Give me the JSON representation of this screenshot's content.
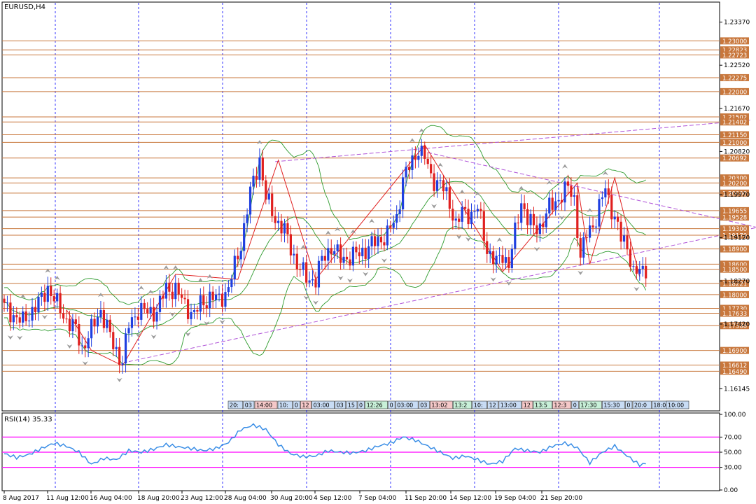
{
  "chart_title": "EURUSD,H4",
  "rsi_label": "RSI(14) 35.33",
  "colors": {
    "level_line": "#c8773c",
    "level_label_bg": "#c8773c",
    "bull_candle": "#1f3fe0",
    "bear_candle": "#e01f1f",
    "bollinger": "#2e9b2e",
    "trendline": "#b054d8",
    "zigzag": "#e02020",
    "rsi_line": "#3a8ee6",
    "rsi_levels": "#ff00ff",
    "grid": "#0000ff"
  },
  "price_ticks": [
    "1.23370",
    "1.22520",
    "1.21670",
    "1.20820",
    "1.19970",
    "1.19120",
    "1.18270",
    "1.17420",
    "1.16145"
  ],
  "level_labels": [
    "1.23000",
    "1.22823",
    "1.22723",
    "1.22275",
    "1.22000",
    "1.21502",
    "1.21402",
    "1.21150",
    "1.21000",
    "1.20692",
    "1.20300",
    "1.20200",
    "1.20000",
    "1.19655",
    "1.19528",
    "1.19300",
    "1.19170",
    "1.18900",
    "1.18600",
    "1.18500",
    "1.18221",
    "1.18000",
    "1.17730",
    "1.17633",
    "1.17388",
    "1.16900",
    "1.16612",
    "1.16490"
  ],
  "rsi_ticks": [
    "100.00",
    "70.00",
    "50.00",
    "30.00",
    "0.00"
  ],
  "time_labels": [
    "8 Aug 2017",
    "11 Aug 12:00",
    "16 Aug 04:00",
    "18 Aug 20:00",
    "23 Aug 12:00",
    "28 Aug 04:00",
    "30 Aug 20:00",
    "4 Sep 12:00",
    "7 Sep 04:00",
    "11 Sep 20:00",
    "14 Sep 12:00",
    "19 Sep 04:00",
    "21 Sep 20:00"
  ],
  "session_boxes": [
    {
      "label": "20:",
      "tone": "blue"
    },
    {
      "label": "03",
      "tone": "blue"
    },
    {
      "label": "14:00",
      "tone": "red"
    },
    {
      "label": "10:",
      "tone": "blue"
    },
    {
      "label": "0",
      "tone": "blue"
    },
    {
      "label": "12",
      "tone": "red"
    },
    {
      "label": "03:00",
      "tone": "blue"
    },
    {
      "label": "03",
      "tone": "blue"
    },
    {
      "label": "15",
      "tone": "blue"
    },
    {
      "label": "0",
      "tone": "blue"
    },
    {
      "label": "12:26",
      "tone": "green"
    },
    {
      "label": "0",
      "tone": "blue"
    },
    {
      "label": "03:00",
      "tone": "blue"
    },
    {
      "label": "03",
      "tone": "blue"
    },
    {
      "label": "13:02",
      "tone": "red"
    },
    {
      "label": "13:2",
      "tone": "green"
    },
    {
      "label": "10:",
      "tone": "blue"
    },
    {
      "label": "12",
      "tone": "blue"
    },
    {
      "label": "13:00",
      "tone": "blue"
    },
    {
      "label": "12",
      "tone": "red"
    },
    {
      "label": "13:5",
      "tone": "green"
    },
    {
      "label": "12:3",
      "tone": "red"
    },
    {
      "label": "0",
      "tone": "blue"
    },
    {
      "label": "17:30",
      "tone": "green"
    },
    {
      "label": "15:30",
      "tone": "blue"
    },
    {
      "label": "0",
      "tone": "blue"
    },
    {
      "label": "20:0",
      "tone": "blue"
    },
    {
      "label": "18:00",
      "tone": "blue"
    },
    {
      "label": "10:00",
      "tone": "blue"
    }
  ],
  "chart_data": {
    "type": "candlestick",
    "symbol": "EURUSD",
    "timeframe": "H4",
    "ylim": [
      1.1575,
      1.2375
    ],
    "levels": [
      1.23,
      1.22823,
      1.22723,
      1.22275,
      1.22,
      1.21502,
      1.21402,
      1.2115,
      1.21,
      1.20692,
      1.203,
      1.202,
      1.2,
      1.19655,
      1.19528,
      1.193,
      1.1917,
      1.189,
      1.186,
      1.185,
      1.18221,
      1.18,
      1.1773,
      1.17633,
      1.17388,
      1.169,
      1.16612,
      1.1649
    ],
    "close_path": [
      [
        0,
        1.1775
      ],
      [
        3,
        1.176
      ],
      [
        6,
        1.1745
      ],
      [
        9,
        1.177
      ],
      [
        12,
        1.179
      ],
      [
        14,
        1.1815
      ],
      [
        17,
        1.178
      ],
      [
        20,
        1.175
      ],
      [
        23,
        1.173
      ],
      [
        25,
        1.1695
      ],
      [
        28,
        1.173
      ],
      [
        31,
        1.177
      ],
      [
        33,
        1.1735
      ],
      [
        35,
        1.17
      ],
      [
        38,
        1.1668
      ],
      [
        40,
        1.174
      ],
      [
        43,
        1.177
      ],
      [
        46,
        1.1765
      ],
      [
        49,
        1.1768
      ],
      [
        52,
        1.1812
      ],
      [
        55,
        1.181
      ],
      [
        58,
        1.178
      ],
      [
        61,
        1.176
      ],
      [
        63,
        1.1782
      ],
      [
        66,
        1.1795
      ],
      [
        69,
        1.179
      ],
      [
        72,
        1.1812
      ],
      [
        76,
        1.19
      ],
      [
        79,
        1.2
      ],
      [
        82,
        1.2068
      ],
      [
        84,
        1.199
      ],
      [
        87,
        1.195
      ],
      [
        90,
        1.1925
      ],
      [
        94,
        1.186
      ],
      [
        97,
        1.1832
      ],
      [
        100,
        1.183
      ],
      [
        102,
        1.1868
      ],
      [
        105,
        1.1895
      ],
      [
        108,
        1.187
      ],
      [
        111,
        1.1875
      ],
      [
        114,
        1.188
      ],
      [
        117,
        1.1895
      ],
      [
        120,
        1.1905
      ],
      [
        123,
        1.192
      ],
      [
        126,
        1.195
      ],
      [
        128,
        1.203
      ],
      [
        131,
        1.206
      ],
      [
        133,
        1.209
      ],
      [
        135,
        1.207
      ],
      [
        137,
        1.203
      ],
      [
        140,
        1.202
      ],
      [
        143,
        1.198
      ],
      [
        145,
        1.194
      ],
      [
        147,
        1.196
      ],
      [
        150,
        1.196
      ],
      [
        152,
        1.197
      ],
      [
        155,
        1.189
      ],
      [
        158,
        1.186
      ],
      [
        160,
        1.188
      ],
      [
        162,
        1.186
      ],
      [
        164,
        1.192
      ],
      [
        166,
        1.1985
      ],
      [
        168,
        1.195
      ],
      [
        170,
        1.193
      ],
      [
        172,
        1.1935
      ],
      [
        175,
        1.197
      ],
      [
        178,
        1.199
      ],
      [
        181,
        1.201
      ],
      [
        183,
        1.199
      ],
      [
        185,
        1.187
      ],
      [
        187,
        1.192
      ],
      [
        190,
        1.195
      ],
      [
        193,
        1.201
      ],
      [
        196,
        1.195
      ],
      [
        198,
        1.191
      ],
      [
        200,
        1.19
      ],
      [
        202,
        1.184
      ],
      [
        204,
        1.1845
      ],
      [
        206,
        1.1855
      ]
    ],
    "projection_bars": 44,
    "bollinger_width": 0.0085,
    "trendlines": [
      {
        "from": [
          87,
          1.2062
        ],
        "to": [
          240,
          1.2144
        ]
      },
      {
        "from": [
          136,
          1.208
        ],
        "to": [
          247,
          1.1925
        ]
      },
      {
        "from": [
          40,
          1.1668
        ],
        "to": [
          246,
          1.1938
        ]
      }
    ],
    "zigzag": [
      [
        20,
        1.177
      ],
      [
        28,
        1.169
      ],
      [
        38,
        1.166
      ],
      [
        55,
        1.184
      ],
      [
        75,
        1.183
      ],
      [
        88,
        1.2065
      ],
      [
        100,
        1.183
      ],
      [
        135,
        1.2095
      ],
      [
        160,
        1.1845
      ],
      [
        184,
        1.202
      ],
      [
        188,
        1.186
      ],
      [
        196,
        1.203
      ],
      [
        204,
        1.1835
      ]
    ],
    "rsi": {
      "name": "RSI(14)",
      "last": 35.33,
      "ylim": [
        0,
        100
      ],
      "levels": [
        70,
        50,
        30
      ],
      "values": [
        [
          0,
          48
        ],
        [
          4,
          43
        ],
        [
          8,
          47
        ],
        [
          12,
          55
        ],
        [
          16,
          62
        ],
        [
          20,
          58
        ],
        [
          24,
          50
        ],
        [
          28,
          34
        ],
        [
          32,
          42
        ],
        [
          36,
          40
        ],
        [
          40,
          52
        ],
        [
          44,
          50
        ],
        [
          48,
          54
        ],
        [
          52,
          60
        ],
        [
          56,
          57
        ],
        [
          60,
          55
        ],
        [
          64,
          52
        ],
        [
          68,
          55
        ],
        [
          72,
          63
        ],
        [
          76,
          80
        ],
        [
          80,
          86
        ],
        [
          84,
          80
        ],
        [
          88,
          60
        ],
        [
          92,
          48
        ],
        [
          96,
          44
        ],
        [
          100,
          45
        ],
        [
          104,
          52
        ],
        [
          108,
          50
        ],
        [
          112,
          49
        ],
        [
          116,
          52
        ],
        [
          120,
          58
        ],
        [
          124,
          62
        ],
        [
          128,
          70
        ],
        [
          132,
          66
        ],
        [
          136,
          58
        ],
        [
          140,
          50
        ],
        [
          144,
          42
        ],
        [
          148,
          45
        ],
        [
          152,
          40
        ],
        [
          156,
          34
        ],
        [
          160,
          38
        ],
        [
          164,
          55
        ],
        [
          168,
          52
        ],
        [
          172,
          50
        ],
        [
          176,
          58
        ],
        [
          180,
          62
        ],
        [
          184,
          56
        ],
        [
          188,
          36
        ],
        [
          192,
          50
        ],
        [
          196,
          58
        ],
        [
          200,
          45
        ],
        [
          204,
          33
        ],
        [
          206,
          35
        ]
      ]
    }
  }
}
